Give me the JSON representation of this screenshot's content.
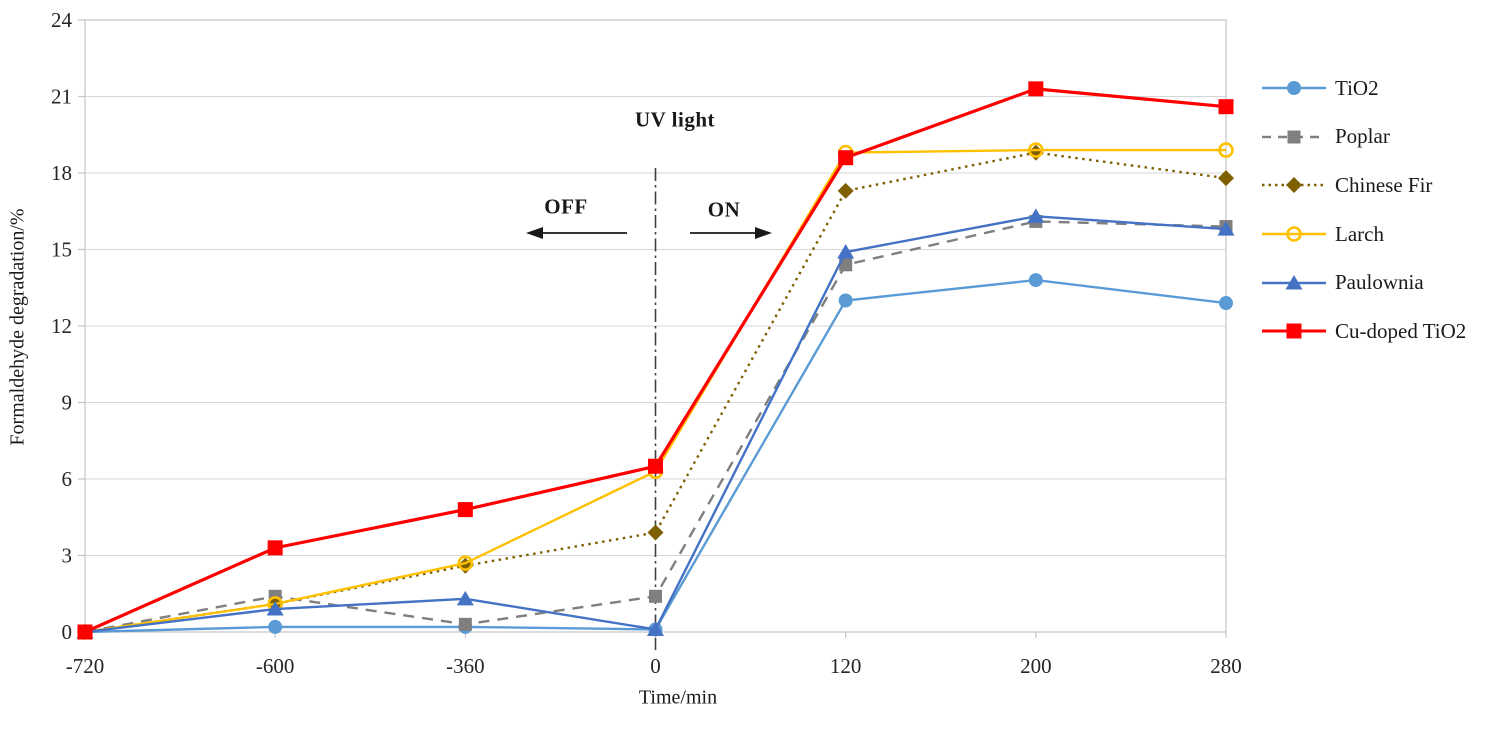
{
  "chart_data": {
    "type": "line",
    "title": "",
    "xlabel": "Time/min",
    "ylabel": "Formaldehyde degradation/%",
    "x_categories": [
      "-720",
      "-600",
      "-360",
      "0",
      "120",
      "200",
      "280"
    ],
    "ylim": [
      0,
      24
    ],
    "ytick_step": 3,
    "grid": "horizontal",
    "legend_position": "right",
    "series": [
      {
        "name": "TiO2",
        "color": "#5B9BD5",
        "line_style": "solid",
        "marker": "circle",
        "values": [
          0,
          0.2,
          0.2,
          0.1,
          13.0,
          13.8,
          12.9
        ]
      },
      {
        "name": "Poplar",
        "color": "#7F7F7F",
        "line_style": "dashed",
        "marker": "square",
        "values": [
          0,
          1.4,
          0.3,
          1.4,
          14.4,
          16.1,
          15.9
        ]
      },
      {
        "name": "Chinese Fir",
        "color": "#7F6000",
        "line_style": "dotted",
        "marker": "diamond",
        "values": [
          0,
          1.1,
          2.6,
          3.9,
          17.3,
          18.8,
          17.8
        ]
      },
      {
        "name": "Larch",
        "color": "#FFC000",
        "line_style": "solid",
        "marker": "open-circle",
        "values": [
          0,
          1.1,
          2.7,
          6.3,
          18.8,
          18.9,
          18.9
        ]
      },
      {
        "name": "Paulownia",
        "color": "#4472C4",
        "line_style": "solid",
        "marker": "triangle",
        "values": [
          0,
          0.9,
          1.3,
          0.1,
          14.9,
          16.3,
          15.8
        ]
      },
      {
        "name": "Cu-doped TiO2",
        "color": "#FF0000",
        "line_style": "solid",
        "marker": "square",
        "values": [
          0,
          3.3,
          4.8,
          6.5,
          18.6,
          21.3,
          20.6
        ]
      }
    ],
    "annotations": {
      "uv_light_label": "UV light",
      "off_label": "OFF",
      "on_label": "ON",
      "uv_line_x_category": "0"
    },
    "colors": {
      "gridline": "#D6D6D6",
      "axis_border": "#C4C4C4",
      "annotation_line": "#3F3F3F",
      "text": "#262626"
    }
  }
}
